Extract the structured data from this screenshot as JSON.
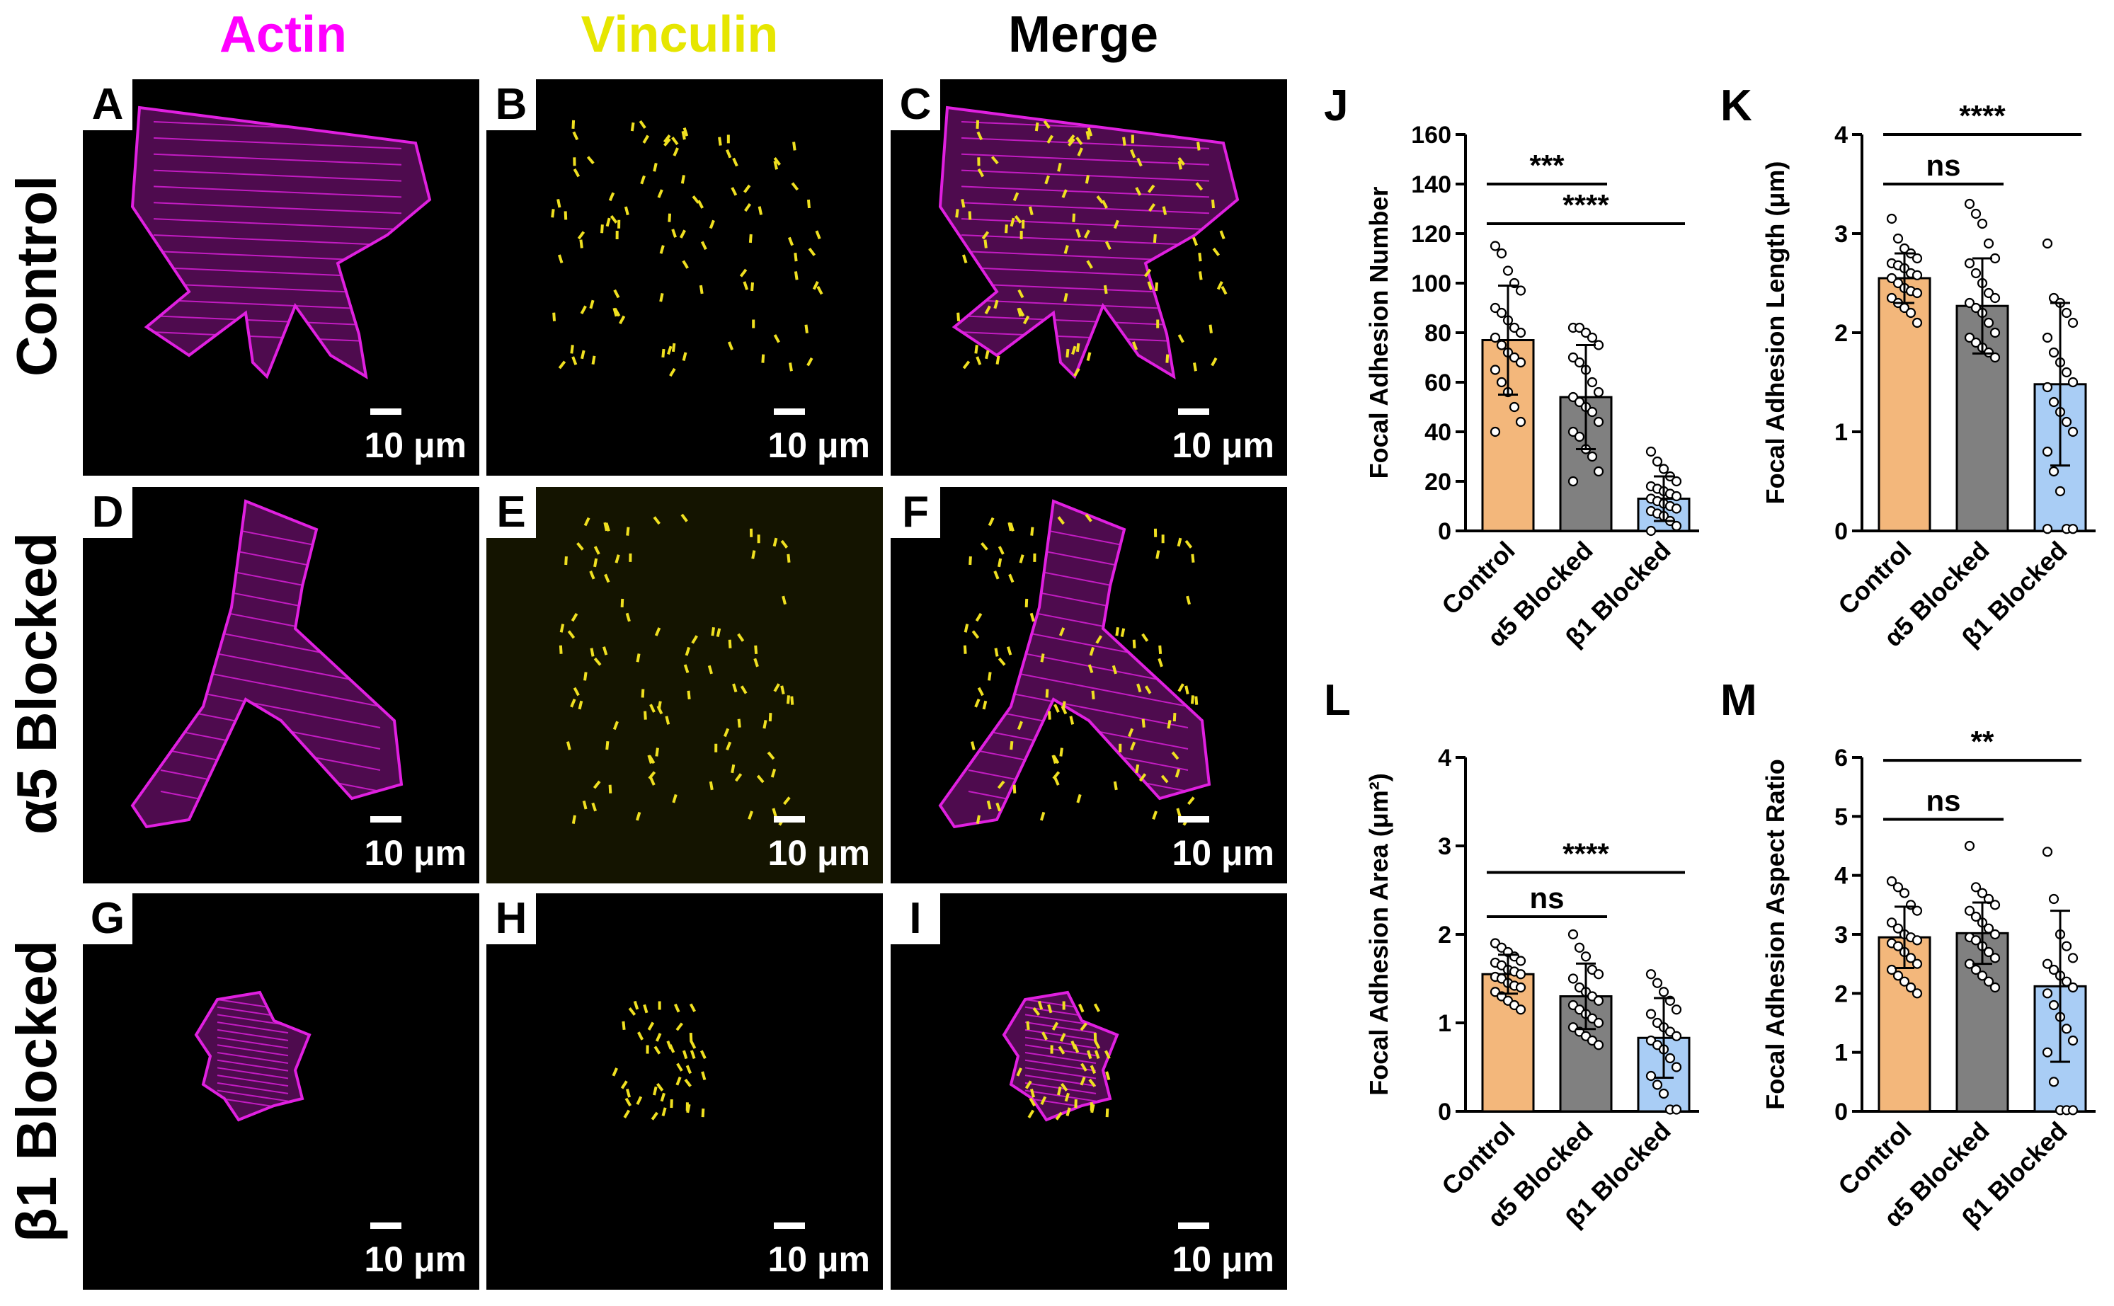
{
  "column_headers": [
    {
      "label": "Actin",
      "color": "#ff00ff"
    },
    {
      "label": "Vinculin",
      "color": "#e6e600"
    },
    {
      "label": "Merge",
      "color": "#000000"
    }
  ],
  "row_labels": [
    "Control",
    "α5 Blocked",
    "β1 Blocked"
  ],
  "panel_letters": [
    "A",
    "B",
    "C",
    "D",
    "E",
    "F",
    "G",
    "H",
    "I"
  ],
  "scale_bar_label": "10 μm",
  "colors": {
    "actin": "#e020e0",
    "vinculin": "#f0e020",
    "control_bar": "#f3b77b",
    "a5_bar": "#808080",
    "b1_bar": "#a9cdf5"
  },
  "chart_data": [
    {
      "panel": "J",
      "type": "bar",
      "ylabel": "Focal Adhesion Number",
      "categories": [
        "Control",
        "α5 Blocked",
        "β1 Blocked"
      ],
      "values": [
        77,
        54,
        13
      ],
      "errors": [
        22,
        21,
        9
      ],
      "ylim": [
        0,
        160
      ],
      "yticks": [
        0,
        20,
        40,
        60,
        80,
        100,
        120,
        140,
        160
      ],
      "points": [
        [
          115,
          112,
          105,
          100,
          97,
          90,
          88,
          85,
          82,
          80,
          78,
          75,
          72,
          70,
          68,
          65,
          60,
          56,
          50,
          44,
          40
        ],
        [
          82,
          82,
          80,
          78,
          75,
          70,
          68,
          65,
          60,
          56,
          54,
          52,
          50,
          48,
          44,
          40,
          38,
          33,
          30,
          24,
          20
        ],
        [
          32,
          28,
          25,
          22,
          20,
          18,
          17,
          16,
          15,
          14,
          13,
          12,
          11,
          10,
          9,
          8,
          7,
          6,
          4,
          2,
          0
        ]
      ],
      "brackets": [
        {
          "from": 0,
          "to": 1,
          "y": 140,
          "label": "***"
        },
        {
          "from": 0,
          "to": 2,
          "y": 124,
          "label": "****"
        }
      ]
    },
    {
      "panel": "K",
      "type": "bar",
      "ylabel": "Focal Adhesion Length (μm)",
      "categories": [
        "Control",
        "α5 Blocked",
        "β1 Blocked"
      ],
      "values": [
        2.55,
        2.27,
        1.48
      ],
      "errors": [
        0.25,
        0.48,
        0.82
      ],
      "ylim": [
        0,
        4
      ],
      "yticks": [
        0,
        1,
        2,
        3,
        4
      ],
      "points": [
        [
          3.15,
          2.95,
          2.85,
          2.8,
          2.75,
          2.7,
          2.68,
          2.65,
          2.6,
          2.58,
          2.55,
          2.5,
          2.45,
          2.42,
          2.4,
          2.35,
          2.3,
          2.25,
          2.2,
          2.1
        ],
        [
          3.3,
          3.2,
          3.1,
          2.9,
          2.75,
          2.7,
          2.6,
          2.5,
          2.4,
          2.35,
          2.3,
          2.25,
          2.2,
          2.1,
          2.0,
          1.95,
          1.9,
          1.85,
          1.8,
          1.75
        ],
        [
          2.9,
          2.35,
          2.3,
          2.2,
          2.1,
          1.95,
          1.8,
          1.7,
          1.6,
          1.5,
          1.45,
          1.3,
          1.2,
          1.1,
          1.0,
          0.8,
          0.6,
          0.4,
          0.02,
          0.02,
          0.02
        ]
      ],
      "brackets": [
        {
          "from": 0,
          "to": 1,
          "y": 3.5,
          "label": "ns"
        },
        {
          "from": 0,
          "to": 2,
          "y": 4.0,
          "label": "****"
        }
      ]
    },
    {
      "panel": "L",
      "type": "bar",
      "ylabel": "Focal Adhesion Area (μm²)",
      "categories": [
        "Control",
        "α5 Blocked",
        "β1 Blocked"
      ],
      "values": [
        1.55,
        1.3,
        0.83
      ],
      "errors": [
        0.22,
        0.37,
        0.45
      ],
      "ylim": [
        0,
        4
      ],
      "yticks": [
        0,
        1,
        2,
        3,
        4
      ],
      "points": [
        [
          1.9,
          1.85,
          1.8,
          1.75,
          1.7,
          1.68,
          1.65,
          1.6,
          1.58,
          1.55,
          1.52,
          1.5,
          1.45,
          1.42,
          1.4,
          1.35,
          1.3,
          1.25,
          1.2,
          1.15
        ],
        [
          2.0,
          1.85,
          1.75,
          1.6,
          1.55,
          1.5,
          1.4,
          1.35,
          1.3,
          1.25,
          1.2,
          1.15,
          1.1,
          1.05,
          1.0,
          0.95,
          0.9,
          0.85,
          0.8,
          0.75
        ],
        [
          1.55,
          1.45,
          1.35,
          1.25,
          1.15,
          1.1,
          1.0,
          0.95,
          0.9,
          0.85,
          0.8,
          0.75,
          0.7,
          0.6,
          0.5,
          0.4,
          0.3,
          0.2,
          0.02,
          0.02
        ]
      ],
      "brackets": [
        {
          "from": 0,
          "to": 1,
          "y": 2.2,
          "label": "ns"
        },
        {
          "from": 0,
          "to": 2,
          "y": 2.7,
          "label": "****"
        }
      ]
    },
    {
      "panel": "M",
      "type": "bar",
      "ylabel": "Focal Adhesion Aspect Ratio",
      "categories": [
        "Control",
        "α5 Blocked",
        "β1 Blocked"
      ],
      "values": [
        2.95,
        3.02,
        2.12
      ],
      "errors": [
        0.52,
        0.52,
        1.28
      ],
      "ylim": [
        0,
        6
      ],
      "yticks": [
        0,
        1,
        2,
        3,
        4,
        5,
        6
      ],
      "points": [
        [
          3.9,
          3.8,
          3.7,
          3.5,
          3.4,
          3.2,
          3.1,
          3.0,
          2.95,
          2.9,
          2.85,
          2.8,
          2.7,
          2.6,
          2.5,
          2.4,
          2.3,
          2.2,
          2.1,
          2.0
        ],
        [
          4.5,
          3.8,
          3.7,
          3.6,
          3.5,
          3.4,
          3.3,
          3.2,
          3.1,
          3.0,
          2.95,
          2.9,
          2.8,
          2.7,
          2.6,
          2.5,
          2.4,
          2.3,
          2.2,
          2.1
        ],
        [
          4.4,
          3.6,
          3.0,
          2.8,
          2.6,
          2.5,
          2.4,
          2.3,
          2.2,
          2.1,
          2.0,
          1.8,
          1.6,
          1.4,
          1.2,
          1.0,
          0.5,
          0.02,
          0.02,
          0.02
        ]
      ],
      "brackets": [
        {
          "from": 0,
          "to": 1,
          "y": 4.95,
          "label": "ns"
        },
        {
          "from": 0,
          "to": 2,
          "y": 5.95,
          "label": "**"
        }
      ]
    }
  ]
}
